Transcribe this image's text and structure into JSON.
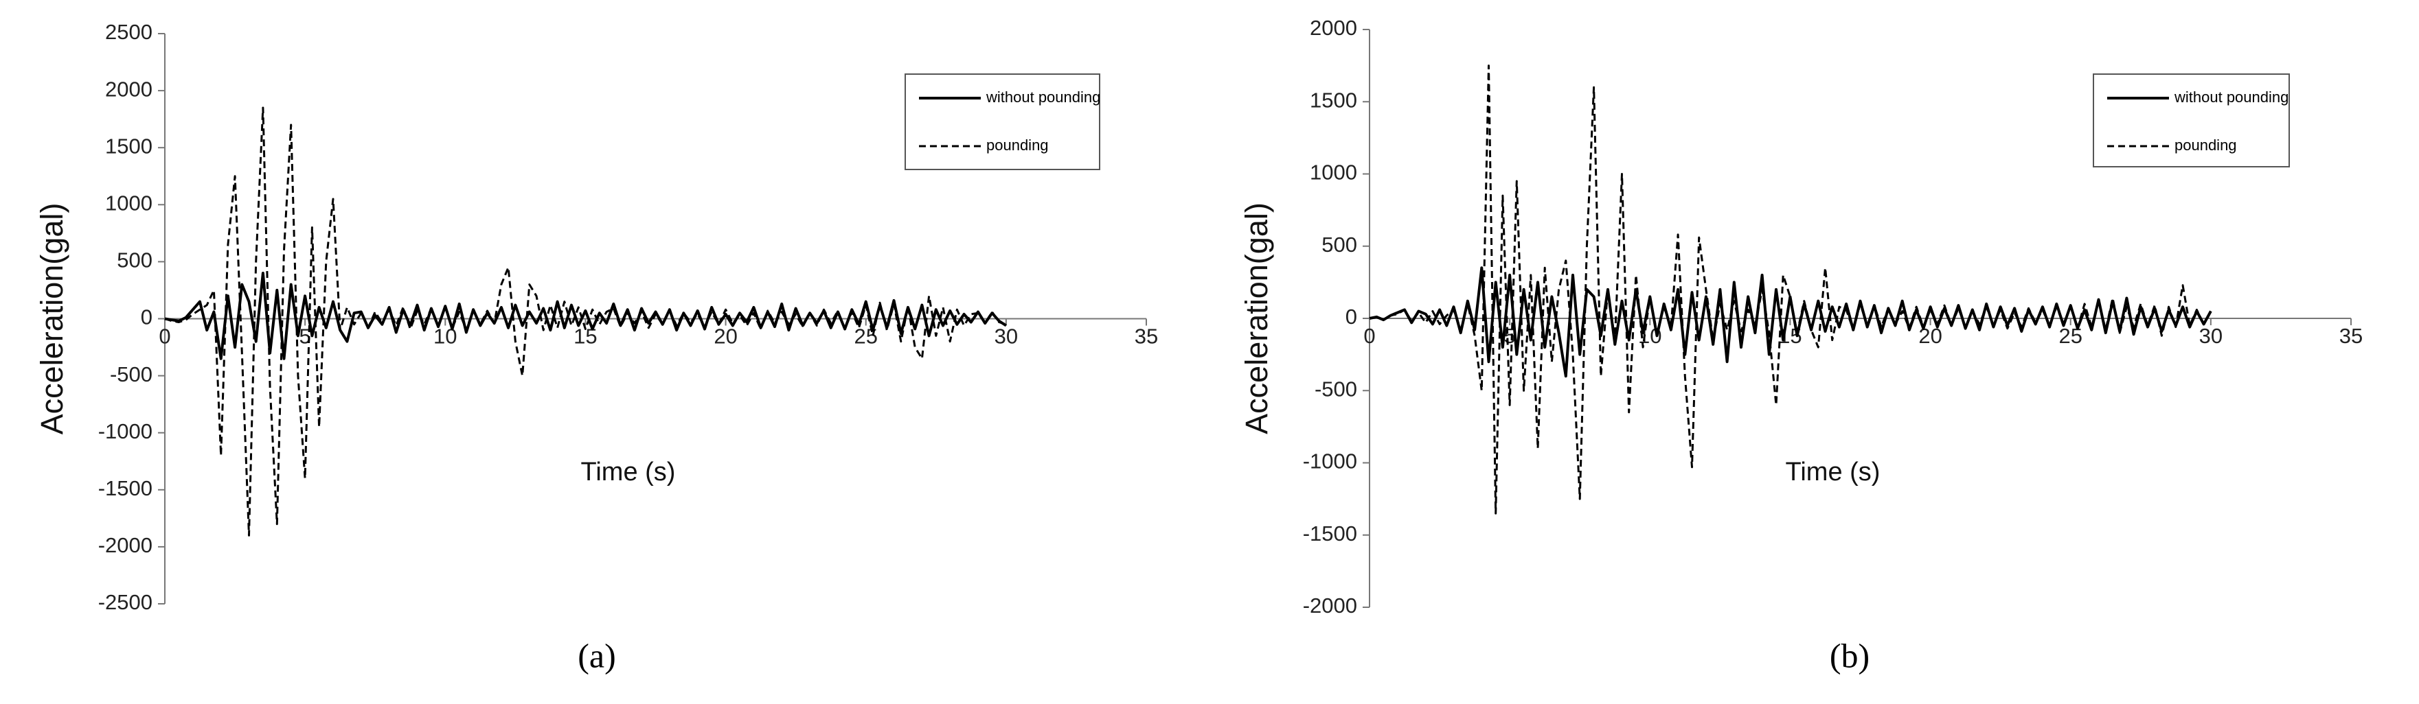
{
  "chart_data": [
    {
      "type": "line",
      "caption": "(a)",
      "x_label": "Time (s)",
      "y_label": "Acceleration(gal)",
      "xlim": [
        0,
        35
      ],
      "xticks": [
        0,
        5,
        10,
        15,
        20,
        25,
        30,
        35
      ],
      "ylim": [
        -2500,
        2500
      ],
      "yticks": [
        -2500,
        -2000,
        -1500,
        -1000,
        -500,
        0,
        500,
        1000,
        1500,
        2000,
        2500
      ],
      "grid": false,
      "legend": "upper right",
      "x": [
        0,
        0.25,
        0.5,
        0.75,
        1,
        1.25,
        1.5,
        1.75,
        2,
        2.25,
        2.5,
        2.75,
        3,
        3.25,
        3.5,
        3.75,
        4,
        4.25,
        4.5,
        4.75,
        5,
        5.25,
        5.5,
        5.75,
        6,
        6.25,
        6.5,
        6.75,
        7,
        7.25,
        7.5,
        7.75,
        8,
        8.25,
        8.5,
        8.75,
        9,
        9.25,
        9.5,
        9.75,
        10,
        10.25,
        10.5,
        10.75,
        11,
        11.25,
        11.5,
        11.75,
        12,
        12.25,
        12.5,
        12.75,
        13,
        13.25,
        13.5,
        13.75,
        14,
        14.25,
        14.5,
        14.75,
        15,
        15.25,
        15.5,
        15.75,
        16,
        16.25,
        16.5,
        16.75,
        17,
        17.25,
        17.5,
        17.75,
        18,
        18.25,
        18.5,
        18.75,
        19,
        19.25,
        19.5,
        19.75,
        20,
        20.25,
        20.5,
        20.75,
        21,
        21.25,
        21.5,
        21.75,
        22,
        22.25,
        22.5,
        22.75,
        23,
        23.25,
        23.5,
        23.75,
        24,
        24.25,
        24.5,
        24.75,
        25,
        25.25,
        25.5,
        25.75,
        26,
        26.25,
        26.5,
        26.75,
        27,
        27.25,
        27.5,
        27.75,
        28,
        28.25,
        28.5,
        28.75,
        29,
        29.25,
        29.5,
        29.75,
        30
      ],
      "series": [
        {
          "name": "without pounding",
          "color": "#000000",
          "style": "solid",
          "values": [
            0,
            -10,
            -20,
            10,
            80,
            150,
            -100,
            60,
            -350,
            200,
            -250,
            300,
            150,
            -200,
            400,
            -300,
            250,
            -350,
            300,
            -150,
            200,
            -150,
            100,
            -80,
            150,
            -100,
            -200,
            50,
            60,
            -80,
            30,
            -50,
            100,
            -120,
            80,
            -60,
            120,
            -100,
            90,
            -70,
            110,
            -90,
            130,
            -120,
            80,
            -60,
            50,
            -40,
            100,
            -80,
            120,
            -60,
            60,
            -40,
            90,
            -100,
            150,
            -80,
            120,
            -60,
            70,
            -90,
            50,
            -40,
            130,
            -60,
            80,
            -100,
            90,
            -40,
            60,
            -50,
            80,
            -100,
            50,
            -60,
            70,
            -90,
            100,
            -50,
            40,
            -60,
            50,
            -30,
            100,
            -80,
            60,
            -70,
            130,
            -100,
            90,
            -60,
            50,
            -40,
            70,
            -80,
            60,
            -90,
            80,
            -50,
            150,
            -100,
            120,
            -80,
            160,
            -130,
            100,
            -90,
            120,
            -150,
            80,
            -60,
            70,
            -50,
            40,
            -30,
            60,
            -40,
            50,
            -20,
            -60
          ]
        },
        {
          "name": "pounding",
          "color": "#000000",
          "style": "dashed",
          "values": [
            0,
            -20,
            -30,
            -10,
            40,
            80,
            120,
            250,
            -1200,
            650,
            1250,
            -300,
            -1900,
            500,
            1850,
            -600,
            -1800,
            600,
            1700,
            -500,
            -1400,
            800,
            -950,
            500,
            1050,
            -100,
            100,
            -50,
            50,
            -80,
            60,
            -40,
            80,
            -60,
            100,
            -90,
            70,
            -50,
            90,
            -60,
            100,
            -80,
            60,
            -100,
            80,
            -50,
            70,
            -40,
            300,
            450,
            -200,
            -500,
            300,
            200,
            -100,
            120,
            -80,
            150,
            -60,
            100,
            -90,
            80,
            -50,
            60,
            90,
            -70,
            50,
            -40,
            60,
            -80,
            40,
            -50,
            70,
            -60,
            50,
            -30,
            40,
            -70,
            60,
            -50,
            80,
            -40,
            30,
            -60,
            50,
            -90,
            70,
            -40,
            60,
            -50,
            40,
            -70,
            50,
            -60,
            80,
            -40,
            70,
            -90,
            60,
            -80,
            120,
            -150,
            140,
            -100,
            130,
            -200,
            110,
            -250,
            -350,
            200,
            -150,
            100,
            -200,
            80,
            -60,
            40,
            50,
            -40,
            60,
            -30,
            -50
          ]
        }
      ]
    },
    {
      "type": "line",
      "caption": "(b)",
      "x_label": "Time (s)",
      "y_label": "Acceleration(gal)",
      "xlim": [
        0,
        35
      ],
      "xticks": [
        0,
        5,
        10,
        15,
        20,
        25,
        30,
        35
      ],
      "ylim": [
        -2000,
        2000
      ],
      "yticks": [
        -2000,
        -1500,
        -1000,
        -500,
        0,
        500,
        1000,
        1500,
        2000
      ],
      "grid": false,
      "legend": "upper right",
      "x": [
        0,
        0.25,
        0.5,
        0.75,
        1,
        1.25,
        1.5,
        1.75,
        2,
        2.25,
        2.5,
        2.75,
        3,
        3.25,
        3.5,
        3.75,
        4,
        4.25,
        4.5,
        4.75,
        5,
        5.25,
        5.5,
        5.75,
        6,
        6.25,
        6.5,
        6.75,
        7,
        7.25,
        7.5,
        7.75,
        8,
        8.25,
        8.5,
        8.75,
        9,
        9.25,
        9.5,
        9.75,
        10,
        10.25,
        10.5,
        10.75,
        11,
        11.25,
        11.5,
        11.75,
        12,
        12.25,
        12.5,
        12.75,
        13,
        13.25,
        13.5,
        13.75,
        14,
        14.25,
        14.5,
        14.75,
        15,
        15.25,
        15.5,
        15.75,
        16,
        16.25,
        16.5,
        16.75,
        17,
        17.25,
        17.5,
        17.75,
        18,
        18.25,
        18.5,
        18.75,
        19,
        19.25,
        19.5,
        19.75,
        20,
        20.25,
        20.5,
        20.75,
        21,
        21.25,
        21.5,
        21.75,
        22,
        22.25,
        22.5,
        22.75,
        23,
        23.25,
        23.5,
        23.75,
        24,
        24.25,
        24.5,
        24.75,
        25,
        25.25,
        25.5,
        25.75,
        26,
        26.25,
        26.5,
        26.75,
        27,
        27.25,
        27.5,
        27.75,
        28,
        28.25,
        28.5,
        28.75,
        29,
        29.25,
        29.5,
        29.75,
        30
      ],
      "series": [
        {
          "name": "without pounding",
          "color": "#000000",
          "style": "solid",
          "values": [
            0,
            10,
            -10,
            20,
            40,
            60,
            -30,
            50,
            30,
            -40,
            60,
            -50,
            80,
            -100,
            120,
            -80,
            350,
            -300,
            250,
            -200,
            300,
            -250,
            200,
            -150,
            250,
            -200,
            150,
            -100,
            -400,
            300,
            -250,
            200,
            150,
            -120,
            200,
            -180,
            120,
            -150,
            200,
            -100,
            150,
            -120,
            100,
            -80,
            200,
            -250,
            180,
            -150,
            150,
            -180,
            200,
            -300,
            250,
            -200,
            150,
            -100,
            300,
            -250,
            200,
            -150,
            150,
            -120,
            100,
            -80,
            120,
            -90,
            80,
            -60,
            100,
            -80,
            120,
            -60,
            90,
            -100,
            70,
            -50,
            120,
            -80,
            60,
            -70,
            80,
            -60,
            70,
            -50,
            90,
            -70,
            60,
            -80,
            100,
            -60,
            80,
            -50,
            70,
            -90,
            60,
            -40,
            80,
            -60,
            100,
            -50,
            90,
            -70,
            60,
            -80,
            130,
            -100,
            120,
            -90,
            140,
            -110,
            80,
            -60,
            70,
            -90,
            60,
            -50,
            80,
            -60,
            50,
            -40,
            50
          ]
        },
        {
          "name": "pounding",
          "color": "#000000",
          "style": "dashed",
          "values": [
            0,
            10,
            -10,
            20,
            30,
            60,
            -20,
            40,
            -30,
            50,
            -40,
            20,
            60,
            -80,
            100,
            -120,
            -500,
            1750,
            -1350,
            850,
            -600,
            950,
            -500,
            300,
            -900,
            350,
            -300,
            200,
            400,
            -250,
            -1250,
            500,
            1600,
            -400,
            200,
            -150,
            1000,
            -650,
            300,
            -200,
            150,
            -100,
            80,
            -60,
            580,
            -400,
            -1030,
            560,
            200,
            -150,
            100,
            -80,
            120,
            -90,
            60,
            -50,
            200,
            -100,
            -600,
            300,
            150,
            -100,
            120,
            -80,
            -200,
            350,
            -150,
            80,
            60,
            -80,
            100,
            -50,
            90,
            -60,
            70,
            -40,
            50,
            -70,
            80,
            -60,
            60,
            -40,
            90,
            -50,
            70,
            -60,
            50,
            -40,
            80,
            -50,
            60,
            -70,
            40,
            -60,
            70,
            -30,
            60,
            -50,
            80,
            -40,
            90,
            -70,
            100,
            -60,
            120,
            -80,
            140,
            -100,
            80,
            -60,
            100,
            -50,
            90,
            -120,
            80,
            -60,
            230,
            -50,
            60,
            -40,
            50
          ]
        }
      ]
    }
  ]
}
